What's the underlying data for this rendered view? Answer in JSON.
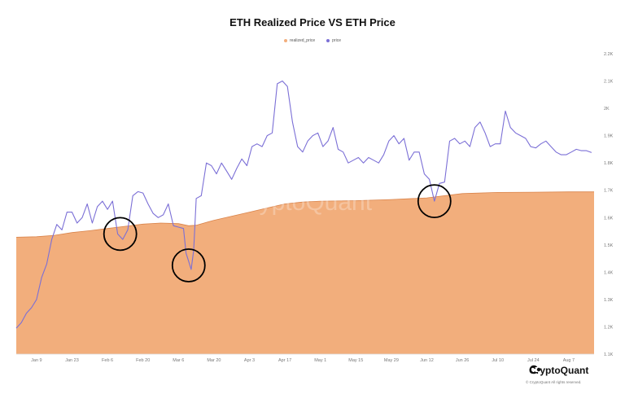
{
  "chart_data": {
    "type": "area",
    "title": "ETH Realized Price VS ETH Price",
    "legend_position": "top",
    "grid": false,
    "watermark": "CryptoQuant",
    "x_tick_labels": [
      "Jan 9",
      "Jan 23",
      "Feb 6",
      "Feb 20",
      "Mar 6",
      "Mar 20",
      "Apr 3",
      "Apr 17",
      "May 1",
      "May 15",
      "May 29",
      "Jun 12",
      "Jun 26",
      "Jul 10",
      "Jul 24",
      "Aug 7"
    ],
    "y_tick_labels": [
      "2.2K",
      "2.1K",
      "2K",
      "1.9K",
      "1.8K",
      "1.7K",
      "1.6K",
      "1.5K",
      "1.4K",
      "1.3K",
      "1.2K",
      "1.1K"
    ],
    "ylim": [
      1100,
      2200
    ],
    "series": [
      {
        "name": "realized_price",
        "type": "area",
        "color": "#f2ae7c",
        "line_color": "#d9834a",
        "points": [
          [
            "2023-01-01",
            1528
          ],
          [
            "2023-01-09",
            1530
          ],
          [
            "2023-01-16",
            1535
          ],
          [
            "2023-01-23",
            1545
          ],
          [
            "2023-01-30",
            1552
          ],
          [
            "2023-02-06",
            1560
          ],
          [
            "2023-02-13",
            1568
          ],
          [
            "2023-02-20",
            1576
          ],
          [
            "2023-02-27",
            1580
          ],
          [
            "2023-03-06",
            1578
          ],
          [
            "2023-03-10",
            1570
          ],
          [
            "2023-03-13",
            1572
          ],
          [
            "2023-03-20",
            1590
          ],
          [
            "2023-03-27",
            1605
          ],
          [
            "2023-04-03",
            1620
          ],
          [
            "2023-04-10",
            1635
          ],
          [
            "2023-04-17",
            1650
          ],
          [
            "2023-04-24",
            1657
          ],
          [
            "2023-05-01",
            1660
          ],
          [
            "2023-05-15",
            1662
          ],
          [
            "2023-05-29",
            1666
          ],
          [
            "2023-06-12",
            1672
          ],
          [
            "2023-06-19",
            1680
          ],
          [
            "2023-06-26",
            1688
          ],
          [
            "2023-07-10",
            1692
          ],
          [
            "2023-07-24",
            1693
          ],
          [
            "2023-08-07",
            1694
          ],
          [
            "2023-08-17",
            1694
          ]
        ]
      },
      {
        "name": "price",
        "type": "line",
        "color": "#7b6fd6",
        "points": [
          [
            "2023-01-01",
            1195
          ],
          [
            "2023-01-03",
            1215
          ],
          [
            "2023-01-05",
            1250
          ],
          [
            "2023-01-07",
            1270
          ],
          [
            "2023-01-09",
            1300
          ],
          [
            "2023-01-11",
            1380
          ],
          [
            "2023-01-13",
            1430
          ],
          [
            "2023-01-15",
            1520
          ],
          [
            "2023-01-17",
            1575
          ],
          [
            "2023-01-19",
            1555
          ],
          [
            "2023-01-21",
            1620
          ],
          [
            "2023-01-23",
            1620
          ],
          [
            "2023-01-25",
            1580
          ],
          [
            "2023-01-27",
            1600
          ],
          [
            "2023-01-29",
            1650
          ],
          [
            "2023-01-31",
            1580
          ],
          [
            "2023-02-02",
            1640
          ],
          [
            "2023-02-04",
            1660
          ],
          [
            "2023-02-06",
            1630
          ],
          [
            "2023-02-08",
            1660
          ],
          [
            "2023-02-10",
            1540
          ],
          [
            "2023-02-12",
            1520
          ],
          [
            "2023-02-14",
            1555
          ],
          [
            "2023-02-16",
            1680
          ],
          [
            "2023-02-18",
            1695
          ],
          [
            "2023-02-20",
            1690
          ],
          [
            "2023-02-22",
            1650
          ],
          [
            "2023-02-24",
            1615
          ],
          [
            "2023-02-26",
            1600
          ],
          [
            "2023-02-28",
            1610
          ],
          [
            "2023-03-02",
            1650
          ],
          [
            "2023-03-04",
            1570
          ],
          [
            "2023-03-06",
            1565
          ],
          [
            "2023-03-08",
            1560
          ],
          [
            "2023-03-09",
            1470
          ],
          [
            "2023-03-10",
            1440
          ],
          [
            "2023-03-11",
            1410
          ],
          [
            "2023-03-12",
            1480
          ],
          [
            "2023-03-13",
            1670
          ],
          [
            "2023-03-15",
            1680
          ],
          [
            "2023-03-17",
            1800
          ],
          [
            "2023-03-19",
            1790
          ],
          [
            "2023-03-21",
            1760
          ],
          [
            "2023-03-23",
            1800
          ],
          [
            "2023-03-25",
            1770
          ],
          [
            "2023-03-27",
            1740
          ],
          [
            "2023-03-29",
            1780
          ],
          [
            "2023-03-31",
            1815
          ],
          [
            "2023-04-02",
            1790
          ],
          [
            "2023-04-04",
            1860
          ],
          [
            "2023-04-06",
            1870
          ],
          [
            "2023-04-08",
            1860
          ],
          [
            "2023-04-10",
            1900
          ],
          [
            "2023-04-12",
            1910
          ],
          [
            "2023-04-14",
            2090
          ],
          [
            "2023-04-16",
            2100
          ],
          [
            "2023-04-18",
            2080
          ],
          [
            "2023-04-20",
            1950
          ],
          [
            "2023-04-22",
            1860
          ],
          [
            "2023-04-24",
            1840
          ],
          [
            "2023-04-26",
            1880
          ],
          [
            "2023-04-28",
            1900
          ],
          [
            "2023-04-30",
            1910
          ],
          [
            "2023-05-02",
            1860
          ],
          [
            "2023-05-04",
            1880
          ],
          [
            "2023-05-06",
            1930
          ],
          [
            "2023-05-08",
            1850
          ],
          [
            "2023-05-10",
            1840
          ],
          [
            "2023-05-12",
            1800
          ],
          [
            "2023-05-14",
            1810
          ],
          [
            "2023-05-16",
            1820
          ],
          [
            "2023-05-18",
            1800
          ],
          [
            "2023-05-20",
            1820
          ],
          [
            "2023-05-22",
            1810
          ],
          [
            "2023-05-24",
            1800
          ],
          [
            "2023-05-26",
            1830
          ],
          [
            "2023-05-28",
            1880
          ],
          [
            "2023-05-30",
            1900
          ],
          [
            "2023-06-01",
            1870
          ],
          [
            "2023-06-03",
            1890
          ],
          [
            "2023-06-05",
            1810
          ],
          [
            "2023-06-07",
            1840
          ],
          [
            "2023-06-09",
            1840
          ],
          [
            "2023-06-11",
            1760
          ],
          [
            "2023-06-13",
            1740
          ],
          [
            "2023-06-15",
            1660
          ],
          [
            "2023-06-17",
            1725
          ],
          [
            "2023-06-19",
            1730
          ],
          [
            "2023-06-21",
            1880
          ],
          [
            "2023-06-23",
            1890
          ],
          [
            "2023-06-25",
            1870
          ],
          [
            "2023-06-27",
            1880
          ],
          [
            "2023-06-29",
            1860
          ],
          [
            "2023-07-01",
            1930
          ],
          [
            "2023-07-03",
            1950
          ],
          [
            "2023-07-05",
            1910
          ],
          [
            "2023-07-07",
            1860
          ],
          [
            "2023-07-09",
            1870
          ],
          [
            "2023-07-11",
            1870
          ],
          [
            "2023-07-13",
            1990
          ],
          [
            "2023-07-15",
            1930
          ],
          [
            "2023-07-17",
            1910
          ],
          [
            "2023-07-19",
            1900
          ],
          [
            "2023-07-21",
            1890
          ],
          [
            "2023-07-23",
            1860
          ],
          [
            "2023-07-25",
            1855
          ],
          [
            "2023-07-27",
            1870
          ],
          [
            "2023-07-29",
            1880
          ],
          [
            "2023-07-31",
            1860
          ],
          [
            "2023-08-02",
            1840
          ],
          [
            "2023-08-04",
            1830
          ],
          [
            "2023-08-06",
            1830
          ],
          [
            "2023-08-08",
            1840
          ],
          [
            "2023-08-10",
            1850
          ],
          [
            "2023-08-12",
            1845
          ],
          [
            "2023-08-14",
            1845
          ],
          [
            "2023-08-16",
            1838
          ]
        ]
      }
    ],
    "annotations": [
      {
        "type": "circle",
        "date": "2023-02-11",
        "value": 1540
      },
      {
        "type": "circle",
        "date": "2023-03-10",
        "value": 1425
      },
      {
        "type": "circle",
        "date": "2023-06-15",
        "value": 1660
      }
    ]
  },
  "brand": {
    "name": "CryptoQuant",
    "copyright": "© CryptoQuant All rights reserved."
  }
}
